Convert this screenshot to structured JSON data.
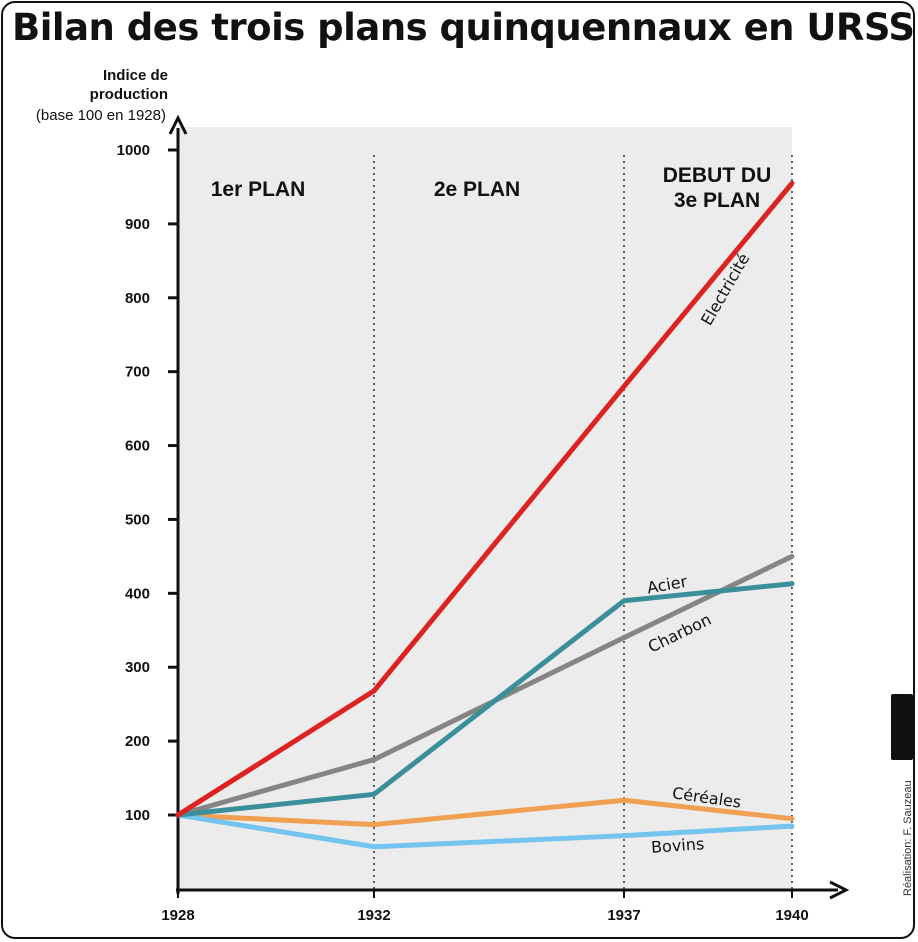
{
  "title": "Bilan des trois plans quinquennaux en URSS",
  "credit": "Réalisation: F. Sauzeau",
  "license_icon": "cc-by-nc-sa-icon",
  "chart_data": {
    "type": "line",
    "title": "Bilan des trois plans quinquennaux en URSS",
    "ylabel_lines": [
      "Indice de",
      "production"
    ],
    "ylabel_sub": "(base 100 en 1928)",
    "xlabel": "",
    "x": [
      1928,
      1932,
      1937,
      1940
    ],
    "x_tick_labels": [
      "1928",
      "1932",
      "1937",
      "1940"
    ],
    "ylim": [
      0,
      1000
    ],
    "y_ticks": [
      100,
      200,
      300,
      400,
      500,
      600,
      700,
      800,
      900,
      1000
    ],
    "y_tick_labels": [
      "100",
      "200",
      "300",
      "400",
      "500",
      "600",
      "700",
      "800",
      "900",
      "1000"
    ],
    "grid": false,
    "periods": [
      {
        "lines": [
          "1er PLAN"
        ],
        "from": 1928,
        "to": 1932
      },
      {
        "lines": [
          "2e PLAN"
        ],
        "from": 1932,
        "to": 1937
      },
      {
        "lines": [
          "DEBUT DU",
          "3e PLAN"
        ],
        "from": 1937,
        "to": 1940
      }
    ],
    "series": [
      {
        "name": "Electricité",
        "values": [
          100,
          268,
          680,
          955
        ],
        "color": "#dd2222"
      },
      {
        "name": "Charbon",
        "values": [
          100,
          175,
          340,
          450
        ],
        "color": "#858585"
      },
      {
        "name": "Acier",
        "values": [
          100,
          128,
          390,
          413
        ],
        "color": "#3a8f9a"
      },
      {
        "name": "Céréales",
        "values": [
          100,
          87,
          120,
          95
        ],
        "color": "#f0a050"
      },
      {
        "name": "Bovins",
        "values": [
          100,
          57,
          72,
          85
        ],
        "color": "#74c4f0"
      }
    ],
    "colors": {
      "background": "#ececec",
      "axis": "#111111"
    }
  }
}
